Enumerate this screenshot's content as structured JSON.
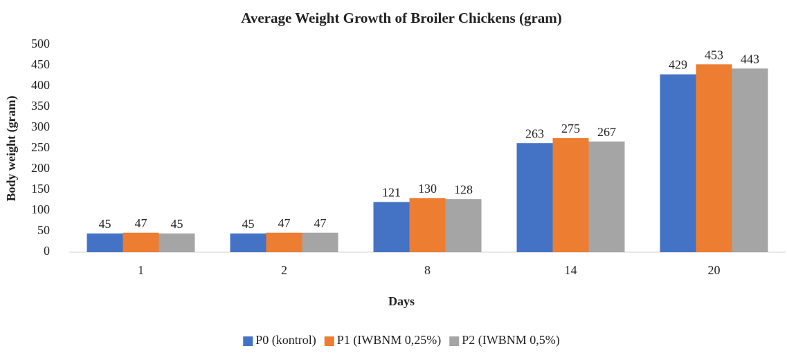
{
  "chart_data": {
    "type": "bar",
    "title": "Average Weight Growth of Broiler Chickens (gram)",
    "x_label": "Days",
    "y_label": "Body weight (gram)",
    "categories": [
      "1",
      "2",
      "8",
      "14",
      "20"
    ],
    "series": [
      {
        "name": "P0 (kontrol)",
        "color": "#4472c4",
        "values": [
          45,
          45,
          121,
          263,
          429
        ]
      },
      {
        "name": "P1 (IWBNM 0,25%)",
        "color": "#ed7d31",
        "values": [
          47,
          47,
          130,
          275,
          453
        ]
      },
      {
        "name": "P2 (IWBNM 0,5%)",
        "color": "#a5a5a5",
        "values": [
          45,
          47,
          128,
          267,
          443
        ]
      }
    ],
    "ylim": [
      0,
      500
    ],
    "yticks": [
      0,
      50,
      100,
      150,
      200,
      250,
      300,
      350,
      400,
      450,
      500
    ],
    "grid": false,
    "legend": "bottom"
  }
}
